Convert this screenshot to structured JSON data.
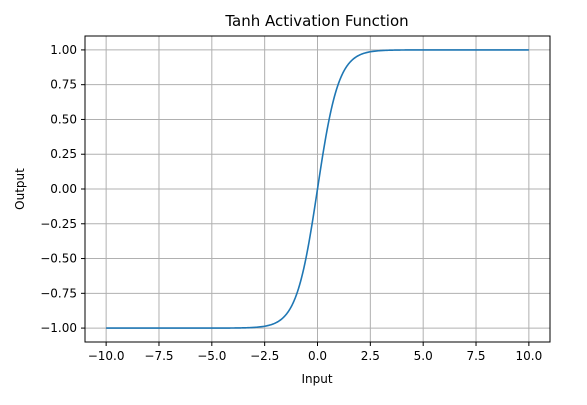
{
  "chart_data": {
    "type": "line",
    "title": "Tanh Activation Function",
    "xlabel": "Input",
    "ylabel": "Output",
    "xlim": [
      -11,
      11
    ],
    "ylim": [
      -1.1,
      1.1
    ],
    "grid": true,
    "legend": "none",
    "line_color": "#1f77b4",
    "grid_color": "#b0b0b0",
    "x_ticks": [
      -10.0,
      -7.5,
      -5.0,
      -2.5,
      0.0,
      2.5,
      5.0,
      7.5,
      10.0
    ],
    "x_tick_labels": [
      "−10.0",
      "−7.5",
      "−5.0",
      "−2.5",
      "0.0",
      "2.5",
      "5.0",
      "7.5",
      "10.0"
    ],
    "y_ticks": [
      -1.0,
      -0.75,
      -0.5,
      -0.25,
      0.0,
      0.25,
      0.5,
      0.75,
      1.0
    ],
    "y_tick_labels": [
      "−1.00",
      "−0.75",
      "−0.50",
      "−0.25",
      "0.00",
      "0.25",
      "0.50",
      "0.75",
      "1.00"
    ],
    "series": [
      {
        "function": "tanh",
        "x": [
          -10,
          -8,
          -6,
          -5,
          -4,
          -3.5,
          -3,
          -2.5,
          -2.25,
          -2,
          -1.75,
          -1.5,
          -1.25,
          -1,
          -0.75,
          -0.5,
          -0.25,
          0,
          0.25,
          0.5,
          0.75,
          1,
          1.25,
          1.5,
          1.75,
          2,
          2.25,
          2.5,
          3,
          3.5,
          4,
          5,
          6,
          8,
          10
        ],
        "y": [
          -1.0,
          -1.0,
          -1.0,
          -0.9999,
          -0.9993,
          -0.9982,
          -0.9951,
          -0.9866,
          -0.978,
          -0.964,
          -0.9414,
          -0.9051,
          -0.8483,
          -0.7616,
          -0.6351,
          -0.4621,
          -0.2449,
          0.0,
          0.2449,
          0.4621,
          0.6351,
          0.7616,
          0.8483,
          0.9051,
          0.9414,
          0.964,
          0.978,
          0.9866,
          0.9951,
          0.9982,
          0.9993,
          0.9999,
          1.0,
          1.0,
          1.0
        ]
      }
    ]
  }
}
